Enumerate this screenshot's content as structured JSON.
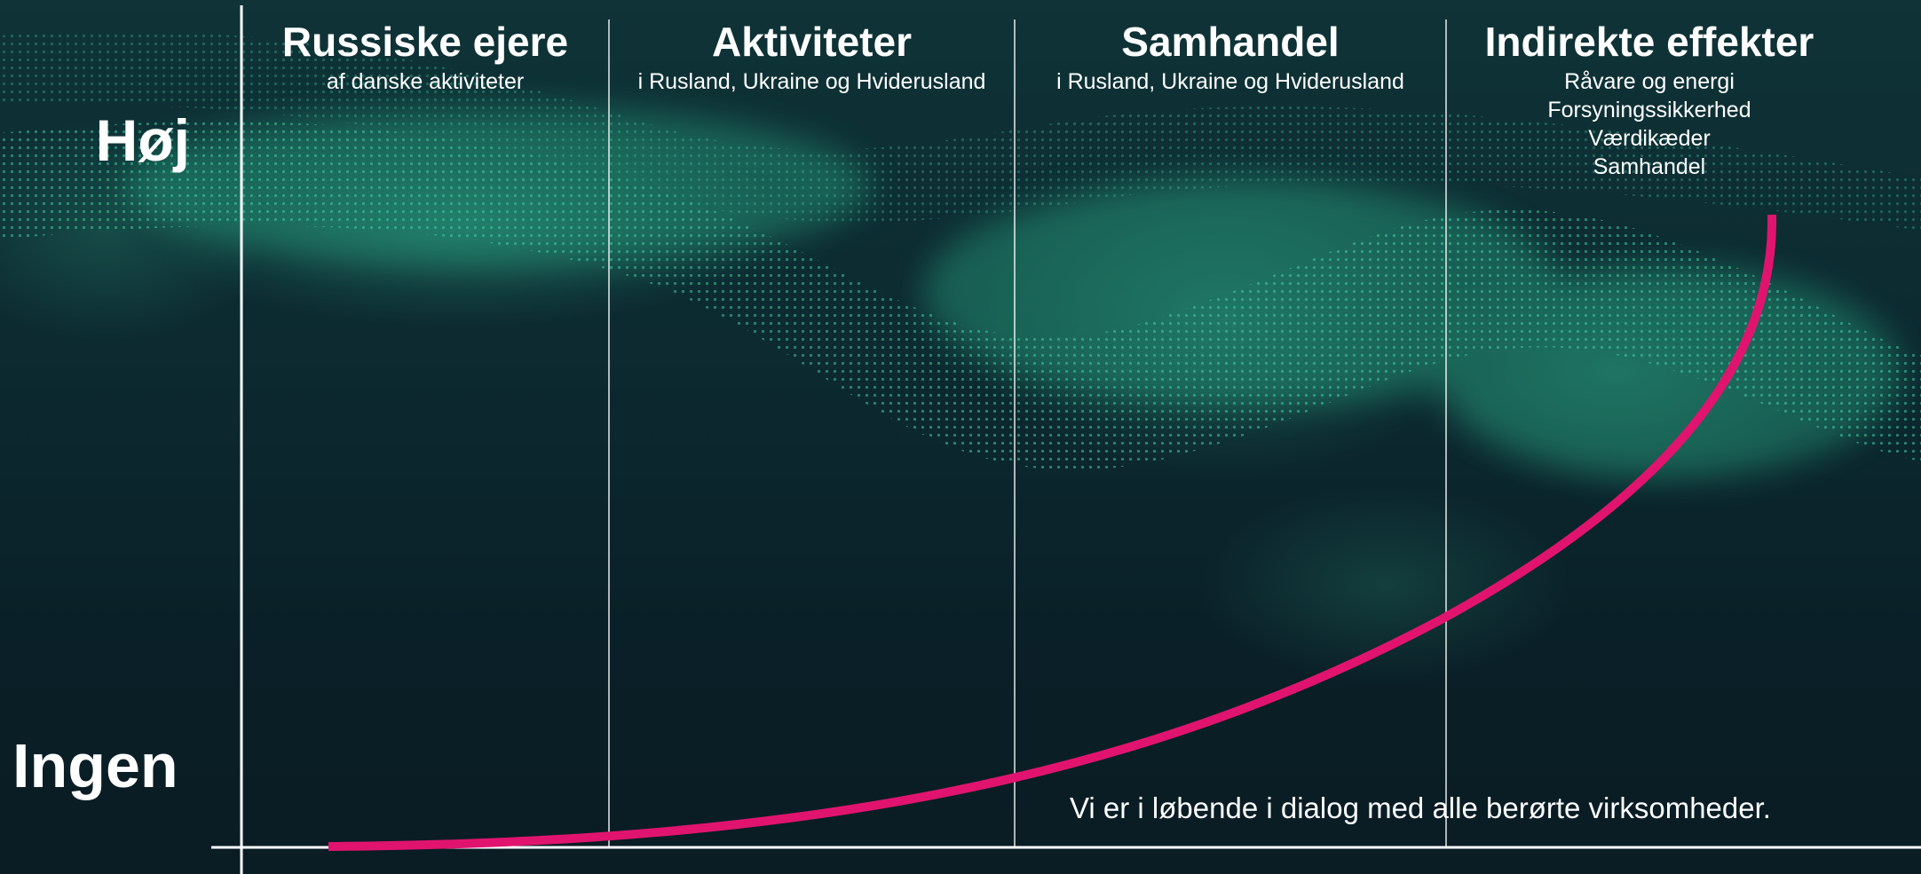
{
  "levels": {
    "high": "Høj",
    "none": "Ingen"
  },
  "columns": [
    {
      "title": "Russiske ejere",
      "subtitle": "af danske aktiviteter"
    },
    {
      "title": "Aktiviteter",
      "subtitle": "i Rusland, Ukraine og Hviderusland"
    },
    {
      "title": "Samhandel",
      "subtitle": "i Rusland, Ukraine og Hviderusland"
    },
    {
      "title": "Indirekte effekter",
      "lines": [
        "Råvare og energi",
        "Forsyningssikkerhed",
        "Værdikæder",
        "Samhandel"
      ]
    }
  ],
  "footnote": "Vi er i løbende i dialog med alle berørte virksomheder.",
  "colors": {
    "curve": "#e0146e",
    "axis": "#ffffff",
    "text": "#ffffff",
    "background": "#0c2a30",
    "accent_glow": "#40d6aa"
  }
}
